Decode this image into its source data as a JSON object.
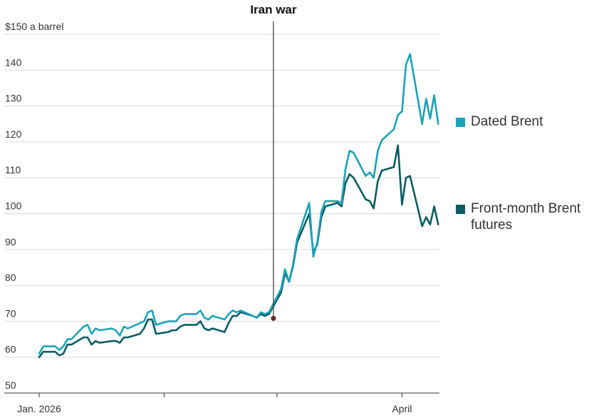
{
  "chart_data": {
    "type": "line",
    "annotation": {
      "label": "Iran war",
      "date": "2026-03-01",
      "value": 71
    },
    "y_unit_label": "$150 a barrel",
    "ylim": [
      50,
      150
    ],
    "y_ticks": [
      {
        "value": 150,
        "label": "$150 a barrel"
      },
      {
        "value": 140,
        "label": "140"
      },
      {
        "value": 130,
        "label": "130"
      },
      {
        "value": 120,
        "label": "120"
      },
      {
        "value": 110,
        "label": "110"
      },
      {
        "value": 100,
        "label": "100"
      },
      {
        "value": 90,
        "label": "90"
      },
      {
        "value": 80,
        "label": "80"
      },
      {
        "value": 70,
        "label": "70"
      },
      {
        "value": 60,
        "label": "60"
      },
      {
        "value": 50,
        "label": "50"
      }
    ],
    "xlim": [
      "2026-01-01",
      "2026-04-09"
    ],
    "x_ticks": [
      {
        "date": "2026-01-01",
        "label": "Jan. 2026"
      },
      {
        "date": "2026-02-01",
        "label": ""
      },
      {
        "date": "2026-03-01",
        "label": ""
      },
      {
        "date": "2026-04-01",
        "label": "April"
      }
    ],
    "grid": true,
    "legend_position": "right",
    "series": [
      {
        "name": "Dated Brent",
        "color": "#1aa3b8",
        "points": [
          [
            "2026-01-01",
            61.0
          ],
          [
            "2026-01-02",
            63.0
          ],
          [
            "2026-01-05",
            63.0
          ],
          [
            "2026-01-06",
            62.0
          ],
          [
            "2026-01-07",
            63.0
          ],
          [
            "2026-01-08",
            65.0
          ],
          [
            "2026-01-09",
            65.0
          ],
          [
            "2026-01-12",
            68.5
          ],
          [
            "2026-01-13",
            69.0
          ],
          [
            "2026-01-14",
            66.5
          ],
          [
            "2026-01-15",
            68.0
          ],
          [
            "2026-01-16",
            67.5
          ],
          [
            "2026-01-19",
            68.0
          ],
          [
            "2026-01-20",
            67.5
          ],
          [
            "2026-01-21",
            66.0
          ],
          [
            "2026-01-22",
            68.5
          ],
          [
            "2026-01-23",
            68.0
          ],
          [
            "2026-01-26",
            69.5
          ],
          [
            "2026-01-27",
            70.0
          ],
          [
            "2026-01-28",
            72.5
          ],
          [
            "2026-01-29",
            73.0
          ],
          [
            "2026-01-30",
            69.0
          ],
          [
            "2026-02-02",
            70.0
          ],
          [
            "2026-02-03",
            70.0
          ],
          [
            "2026-02-04",
            70.0
          ],
          [
            "2026-02-05",
            71.5
          ],
          [
            "2026-02-06",
            72.0
          ],
          [
            "2026-02-09",
            72.0
          ],
          [
            "2026-02-10",
            73.0
          ],
          [
            "2026-02-11",
            71.0
          ],
          [
            "2026-02-12",
            70.5
          ],
          [
            "2026-02-13",
            71.5
          ],
          [
            "2026-02-16",
            70.5
          ],
          [
            "2026-02-17",
            72.0
          ],
          [
            "2026-02-18",
            73.0
          ],
          [
            "2026-02-19",
            72.5
          ],
          [
            "2026-02-20",
            73.0
          ],
          [
            "2026-02-23",
            71.5
          ],
          [
            "2026-02-24",
            71.0
          ],
          [
            "2026-02-25",
            72.5
          ],
          [
            "2026-02-26",
            72.0
          ],
          [
            "2026-02-27",
            72.5
          ],
          [
            "2026-03-02",
            79.0
          ],
          [
            "2026-03-03",
            84.5
          ],
          [
            "2026-03-04",
            81.0
          ],
          [
            "2026-03-05",
            86.0
          ],
          [
            "2026-03-06",
            93.0
          ],
          [
            "2026-03-09",
            103.0
          ],
          [
            "2026-03-10",
            88.0
          ],
          [
            "2026-03-11",
            92.0
          ],
          [
            "2026-03-12",
            100.5
          ],
          [
            "2026-03-13",
            103.5
          ],
          [
            "2026-03-16",
            103.5
          ],
          [
            "2026-03-17",
            103.0
          ],
          [
            "2026-03-18",
            112.5
          ],
          [
            "2026-03-19",
            117.5
          ],
          [
            "2026-03-20",
            117.0
          ],
          [
            "2026-03-23",
            110.5
          ],
          [
            "2026-03-24",
            111.5
          ],
          [
            "2026-03-25",
            110.0
          ],
          [
            "2026-03-26",
            117.5
          ],
          [
            "2026-03-27",
            120.5
          ],
          [
            "2026-03-30",
            123.5
          ],
          [
            "2026-03-31",
            127.5
          ],
          [
            "2026-04-01",
            128.5
          ],
          [
            "2026-04-02",
            141.5
          ],
          [
            "2026-04-03",
            144.5
          ],
          [
            "2026-04-06",
            125.0
          ],
          [
            "2026-04-07",
            132.0
          ],
          [
            "2026-04-08",
            126.5
          ],
          [
            "2026-04-09",
            133.0
          ],
          [
            "2026-04-10",
            125.0
          ]
        ]
      },
      {
        "name": "Front-month Brent futures",
        "color": "#0b5c63",
        "points": [
          [
            "2026-01-01",
            60.0
          ],
          [
            "2026-01-02",
            61.5
          ],
          [
            "2026-01-05",
            61.5
          ],
          [
            "2026-01-06",
            60.5
          ],
          [
            "2026-01-07",
            61.0
          ],
          [
            "2026-01-08",
            63.5
          ],
          [
            "2026-01-09",
            63.5
          ],
          [
            "2026-01-12",
            65.5
          ],
          [
            "2026-01-13",
            65.5
          ],
          [
            "2026-01-14",
            63.5
          ],
          [
            "2026-01-15",
            64.5
          ],
          [
            "2026-01-16",
            64.0
          ],
          [
            "2026-01-19",
            64.5
          ],
          [
            "2026-01-20",
            64.5
          ],
          [
            "2026-01-21",
            64.0
          ],
          [
            "2026-01-22",
            65.5
          ],
          [
            "2026-01-23",
            65.5
          ],
          [
            "2026-01-26",
            66.5
          ],
          [
            "2026-01-27",
            68.0
          ],
          [
            "2026-01-28",
            70.5
          ],
          [
            "2026-01-29",
            70.5
          ],
          [
            "2026-01-30",
            66.5
          ],
          [
            "2026-02-02",
            67.0
          ],
          [
            "2026-02-03",
            67.5
          ],
          [
            "2026-02-04",
            67.5
          ],
          [
            "2026-02-05",
            68.5
          ],
          [
            "2026-02-06",
            69.0
          ],
          [
            "2026-02-09",
            69.0
          ],
          [
            "2026-02-10",
            70.0
          ],
          [
            "2026-02-11",
            68.0
          ],
          [
            "2026-02-12",
            67.5
          ],
          [
            "2026-02-13",
            68.0
          ],
          [
            "2026-02-16",
            67.0
          ],
          [
            "2026-02-17",
            69.5
          ],
          [
            "2026-02-18",
            71.5
          ],
          [
            "2026-02-19",
            71.5
          ],
          [
            "2026-02-20",
            72.5
          ],
          [
            "2026-02-23",
            71.5
          ],
          [
            "2026-02-24",
            71.0
          ],
          [
            "2026-02-25",
            72.0
          ],
          [
            "2026-02-26",
            71.5
          ],
          [
            "2026-02-27",
            72.0
          ],
          [
            "2026-03-02",
            78.0
          ],
          [
            "2026-03-03",
            83.5
          ],
          [
            "2026-03-04",
            81.0
          ],
          [
            "2026-03-05",
            85.5
          ],
          [
            "2026-03-06",
            92.0
          ],
          [
            "2026-03-09",
            100.0
          ],
          [
            "2026-03-10",
            89.0
          ],
          [
            "2026-03-11",
            91.5
          ],
          [
            "2026-03-12",
            99.0
          ],
          [
            "2026-03-13",
            102.0
          ],
          [
            "2026-03-16",
            103.0
          ],
          [
            "2026-03-17",
            102.0
          ],
          [
            "2026-03-18",
            108.5
          ],
          [
            "2026-03-19",
            111.0
          ],
          [
            "2026-03-20",
            110.0
          ],
          [
            "2026-03-23",
            104.0
          ],
          [
            "2026-03-24",
            103.5
          ],
          [
            "2026-03-25",
            101.5
          ],
          [
            "2026-03-26",
            109.0
          ],
          [
            "2026-03-27",
            112.0
          ],
          [
            "2026-03-30",
            113.0
          ],
          [
            "2026-03-31",
            119.0
          ],
          [
            "2026-04-01",
            102.5
          ],
          [
            "2026-04-02",
            110.0
          ],
          [
            "2026-04-03",
            110.5
          ],
          [
            "2026-04-06",
            96.5
          ],
          [
            "2026-04-07",
            99.0
          ],
          [
            "2026-04-08",
            97.0
          ],
          [
            "2026-04-09",
            102.0
          ],
          [
            "2026-04-10",
            97.0
          ]
        ]
      }
    ]
  }
}
